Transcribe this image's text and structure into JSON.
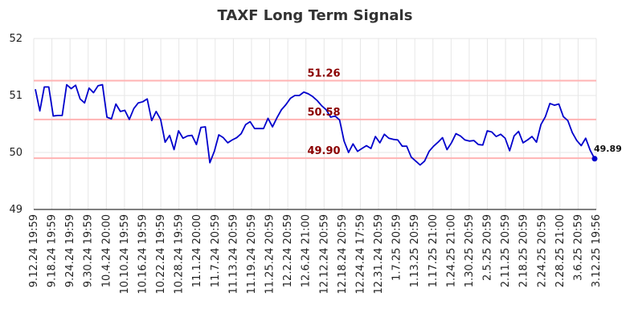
{
  "chart_data": {
    "type": "line",
    "title": "TAXF Long Term Signals",
    "xlabel": "",
    "ylabel": "",
    "ylim": [
      49,
      52
    ],
    "yticks": [
      "49",
      "50",
      "51",
      "52"
    ],
    "grid": true,
    "colors": {
      "line": "#0000cc",
      "reference": "#ffb3b3",
      "reference_text": "#8b0000",
      "grid": "#e6e6e6"
    },
    "x_tick_labels": [
      "9.12.24 19:59",
      "9.18.24 19:59",
      "9.24.24 19:59",
      "9.30.24 19:59",
      "10.4.24 20:00",
      "10.10.24 19:59",
      "10.16.24 19:59",
      "10.22.24 19:59",
      "10.28.24 19:59",
      "11.1.24 20:00",
      "11.7.24 20:59",
      "11.13.24 20:59",
      "11.19.24 20:59",
      "11.25.24 20:59",
      "12.2.24 20:59",
      "12.6.24 21:00",
      "12.12.24 20:59",
      "12.18.24 20:59",
      "12.24.24 17:59",
      "12.31.24 20:59",
      "1.7.25 20:59",
      "1.13.25 20:59",
      "1.17.25 21:00",
      "1.24.25 21:00",
      "1.30.25 20:59",
      "2.5.25 20:59",
      "2.11.25 20:59",
      "2.18.25 20:59",
      "2.24.25 20:59",
      "2.28.25 21:00",
      "3.6.25 20:59",
      "3.12.25 19:56"
    ],
    "reference_lines": [
      {
        "value": 51.26,
        "label": "51.26"
      },
      {
        "value": 50.58,
        "label": "50.58"
      },
      {
        "value": 49.9,
        "label": "49.90"
      }
    ],
    "last_point": {
      "label": "49.89",
      "value": 49.89
    },
    "series": [
      {
        "values": [
          51.11,
          50.73,
          51.15,
          51.15,
          50.64,
          50.65,
          50.65,
          51.19,
          51.12,
          51.18,
          50.94,
          50.87,
          51.13,
          51.05,
          51.17,
          51.19,
          50.62,
          50.59,
          50.85,
          50.72,
          50.74,
          50.58,
          50.77,
          50.87,
          50.89,
          50.94,
          50.56,
          50.72,
          50.58,
          50.18,
          50.3,
          50.05,
          50.38,
          50.25,
          50.29,
          50.3,
          50.14,
          50.44,
          50.45,
          49.82,
          50.02,
          50.31,
          50.26,
          50.17,
          50.22,
          50.26,
          50.33,
          50.49,
          50.54,
          50.42,
          50.42,
          50.42,
          50.6,
          50.45,
          50.61,
          50.75,
          50.84,
          50.95,
          51.0,
          51.0,
          51.06,
          51.03,
          50.98,
          50.91,
          50.82,
          50.75,
          50.62,
          50.64,
          50.57,
          50.2,
          50.0,
          50.15,
          50.02,
          50.07,
          50.12,
          50.07,
          50.28,
          50.17,
          50.32,
          50.25,
          50.23,
          50.22,
          50.11,
          50.11,
          49.92,
          49.85,
          49.78,
          49.85,
          50.02,
          50.11,
          50.18,
          50.26,
          50.05,
          50.17,
          50.33,
          50.29,
          50.22,
          50.2,
          50.21,
          50.14,
          50.13,
          50.38,
          50.36,
          50.28,
          50.32,
          50.25,
          50.03,
          50.29,
          50.37,
          50.17,
          50.22,
          50.28,
          50.18,
          50.49,
          50.63,
          50.86,
          50.83,
          50.85,
          50.63,
          50.56,
          50.35,
          50.21,
          50.12,
          50.25,
          50.04,
          49.89
        ]
      }
    ]
  }
}
